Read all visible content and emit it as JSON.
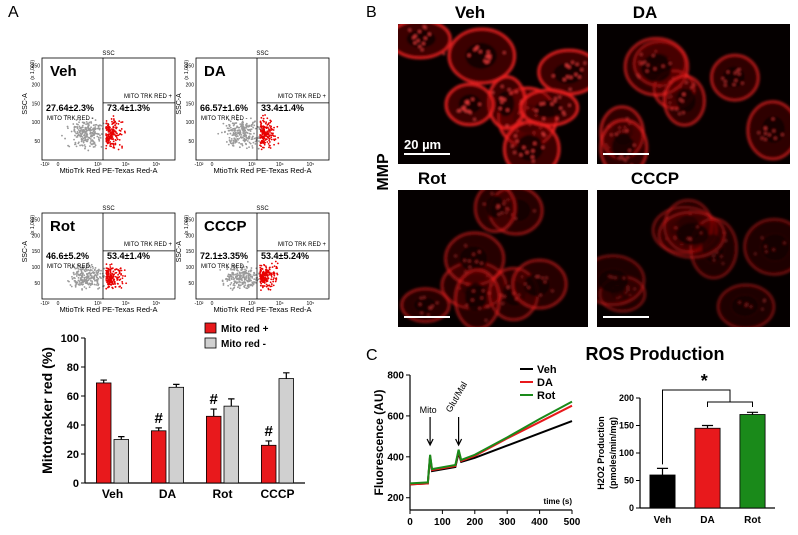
{
  "panel_labels": {
    "a": "A",
    "b": "B",
    "c": "C"
  },
  "flow_cytometry": {
    "top_label": "SSC",
    "y_axis": "SSC-A",
    "y_unit": "(x 1,000)",
    "x_axis": "MtioTrk Red PE-Texas Red-A",
    "upper_gate": "MITO TRK RED +",
    "lower_gate": "MITO TRK RED -",
    "x_ticks": [
      "-10²",
      "0",
      "10³",
      "10⁴",
      "10⁵"
    ],
    "y_ticks": [
      "50",
      "100",
      "150",
      "200",
      "250"
    ],
    "plots": [
      {
        "name": "Veh",
        "left": "27.64±2.3%",
        "right": "73.4±1.3%"
      },
      {
        "name": "DA",
        "left": "66.57±1.6%",
        "right": "33.4±1.4%"
      },
      {
        "name": "Rot",
        "left": "46.6±5.2%",
        "right": "53.4±1.4%"
      },
      {
        "name": "CCCP",
        "left": "72.1±3.35%",
        "right": "53.4±5.24%"
      }
    ]
  },
  "micrographs": {
    "row_label": "MMP",
    "scale": "20 µm",
    "panels": [
      "Veh",
      "DA",
      "Rot",
      "CCCP"
    ]
  },
  "chart_data": [
    {
      "type": "bar",
      "ylabel": "Mitotracker red (%)",
      "categories": [
        "Veh",
        "DA",
        "Rot",
        "CCCP"
      ],
      "series": [
        {
          "name": "Mito red +",
          "color": "#e8191c",
          "values": [
            69,
            36,
            46,
            26
          ],
          "errors": [
            2,
            2,
            5,
            3
          ],
          "annotations": [
            null,
            "#",
            "#",
            "#"
          ]
        },
        {
          "name": "Mito red -",
          "color": "#d0d0d0",
          "values": [
            30,
            66,
            53,
            72
          ],
          "errors": [
            2,
            2,
            5,
            4
          ]
        }
      ],
      "ylim": [
        0,
        100
      ],
      "yticks": [
        0,
        20,
        40,
        60,
        80,
        100
      ],
      "legend": "upper right"
    },
    {
      "type": "line",
      "title": "ROS Production",
      "ylabel": "Fluorescence (AU)",
      "xlabel": "time (s)",
      "x": [
        0,
        55,
        62,
        68,
        140,
        150,
        158,
        200,
        300,
        400,
        500
      ],
      "series": [
        {
          "name": "Veh",
          "color": "#000000",
          "values": [
            265,
            270,
            400,
            330,
            350,
            420,
            375,
            395,
            455,
            515,
            575
          ]
        },
        {
          "name": "DA",
          "color": "#e8191c",
          "values": [
            265,
            270,
            405,
            335,
            355,
            430,
            380,
            405,
            490,
            570,
            650
          ]
        },
        {
          "name": "Rot",
          "color": "#1a8a1a",
          "values": [
            270,
            275,
            410,
            340,
            360,
            435,
            385,
            410,
            495,
            585,
            670
          ]
        }
      ],
      "annotations": [
        {
          "text": "Mito",
          "x": 62
        },
        {
          "text": "Glut/Mal",
          "x": 150
        }
      ],
      "xlim": [
        0,
        500
      ],
      "xticks": [
        0,
        100,
        200,
        300,
        400,
        500
      ],
      "ylim": [
        140,
        800
      ],
      "yticks": [
        200,
        400,
        600,
        800
      ],
      "legend": "upper right"
    },
    {
      "type": "bar",
      "ylabel": [
        "H2O2 Production",
        "(pmoles/min/mg)"
      ],
      "categories": [
        "Veh",
        "DA",
        "Rot"
      ],
      "values": [
        60,
        145,
        170
      ],
      "errors": [
        12,
        5,
        4
      ],
      "colors": [
        "#000000",
        "#e8191c",
        "#1a8a1a"
      ],
      "significance": "*",
      "ylim": [
        0,
        200
      ],
      "yticks": [
        0,
        50,
        100,
        150,
        200
      ]
    }
  ]
}
